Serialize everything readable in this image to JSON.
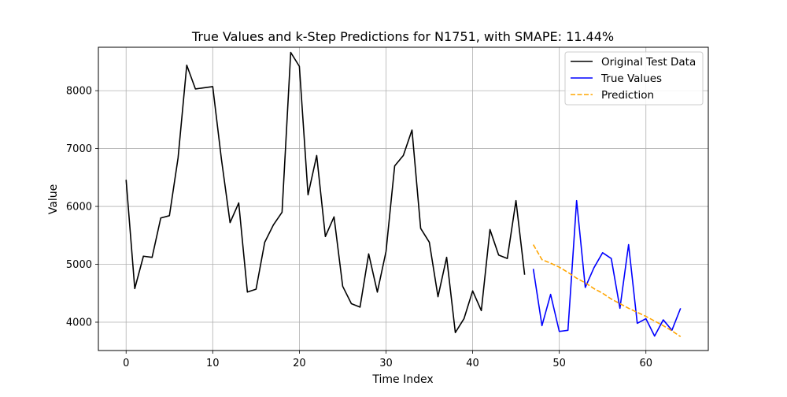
{
  "chart_data": {
    "type": "line",
    "title": "True Values and k-Step Predictions for N1751, with SMAPE: 11.44%",
    "xlabel": "Time Index",
    "ylabel": "Value",
    "xlim": [
      -3.2,
      67.2
    ],
    "ylim": [
      3510,
      8750
    ],
    "x_ticks": [
      0,
      10,
      20,
      30,
      40,
      50,
      60
    ],
    "y_ticks": [
      4000,
      5000,
      6000,
      7000,
      8000
    ],
    "grid": true,
    "legend_position": "top-right",
    "series": [
      {
        "name": "Original Test Data",
        "color": "#000000",
        "style": "solid",
        "x": [
          0,
          1,
          2,
          3,
          4,
          5,
          6,
          7,
          8,
          9,
          10,
          11,
          12,
          13,
          14,
          15,
          16,
          17,
          18,
          19,
          20,
          21,
          22,
          23,
          24,
          25,
          26,
          27,
          28,
          29,
          30,
          31,
          32,
          33,
          34,
          35,
          36,
          37,
          38,
          39,
          40,
          41,
          42,
          43,
          44,
          45,
          46
        ],
        "values": [
          6460,
          4580,
          5140,
          5120,
          5800,
          5840,
          6840,
          8440,
          8030,
          8050,
          8070,
          6820,
          5720,
          6060,
          4520,
          4570,
          5380,
          5680,
          5900,
          8660,
          8420,
          6200,
          6880,
          5480,
          5820,
          4620,
          4320,
          4260,
          5180,
          4520,
          5220,
          6700,
          6880,
          7320,
          5620,
          5380,
          4440,
          5120,
          3820,
          4060,
          4540,
          4200,
          5600,
          5160,
          5100,
          6100,
          4820
        ]
      },
      {
        "name": "True Values",
        "color": "#0000ff",
        "style": "solid",
        "x": [
          47,
          48,
          49,
          50,
          51,
          52,
          53,
          54,
          55,
          56,
          57,
          58,
          59,
          60,
          61,
          62,
          63,
          64
        ],
        "values": [
          4920,
          3940,
          4480,
          3840,
          3860,
          6100,
          4600,
          4940,
          5200,
          5100,
          4240,
          5340,
          3980,
          4060,
          3760,
          4040,
          3860,
          4240
        ]
      },
      {
        "name": "Prediction",
        "color": "#ffa500",
        "style": "dashed",
        "x": [
          47,
          48,
          49,
          50,
          51,
          52,
          53,
          54,
          55,
          56,
          57,
          58,
          59,
          60,
          61,
          62,
          63,
          64
        ],
        "values": [
          5340,
          5080,
          5020,
          4950,
          4860,
          4760,
          4680,
          4580,
          4500,
          4400,
          4320,
          4240,
          4170,
          4100,
          4020,
          3940,
          3850,
          3750
        ]
      }
    ]
  }
}
